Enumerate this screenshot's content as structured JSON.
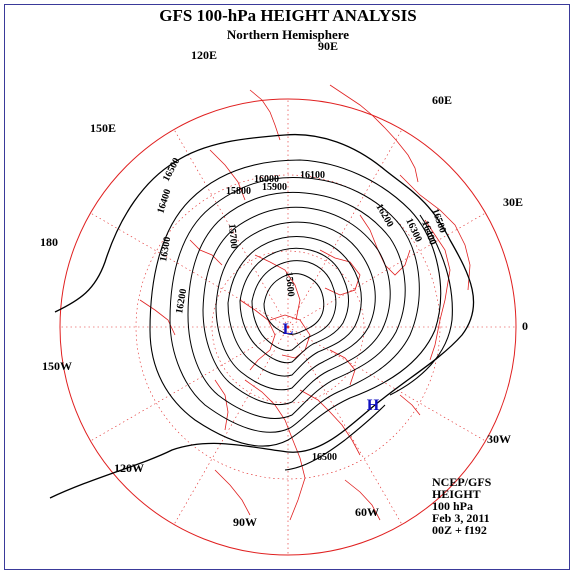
{
  "header": {
    "title": "GFS 100-hPa HEIGHT ANALYSIS",
    "subtitle": "Northern Hemisphere"
  },
  "info": {
    "line1": "NCEP/GFS",
    "line2": "HEIGHT",
    "line3": "100 hPa",
    "line4": "Feb 3, 2011",
    "line5": "00Z + f192"
  },
  "longitude_labels": [
    "90E",
    "60E",
    "30E",
    "0",
    "30W",
    "60W",
    "90W",
    "120W",
    "150W",
    "180",
    "150E",
    "120E"
  ],
  "contour_labels": [
    "16500",
    "16500",
    "16500",
    "16400",
    "16400",
    "16300",
    "16300",
    "16200",
    "16200",
    "16100",
    "16000",
    "15900",
    "15800",
    "15700",
    "15600"
  ],
  "pressure_centers": {
    "low": "L",
    "high": "H"
  },
  "colors": {
    "map": "#e02020",
    "contour": "#000000",
    "center": "#1010c0",
    "frame": "#3a3a9a"
  }
}
